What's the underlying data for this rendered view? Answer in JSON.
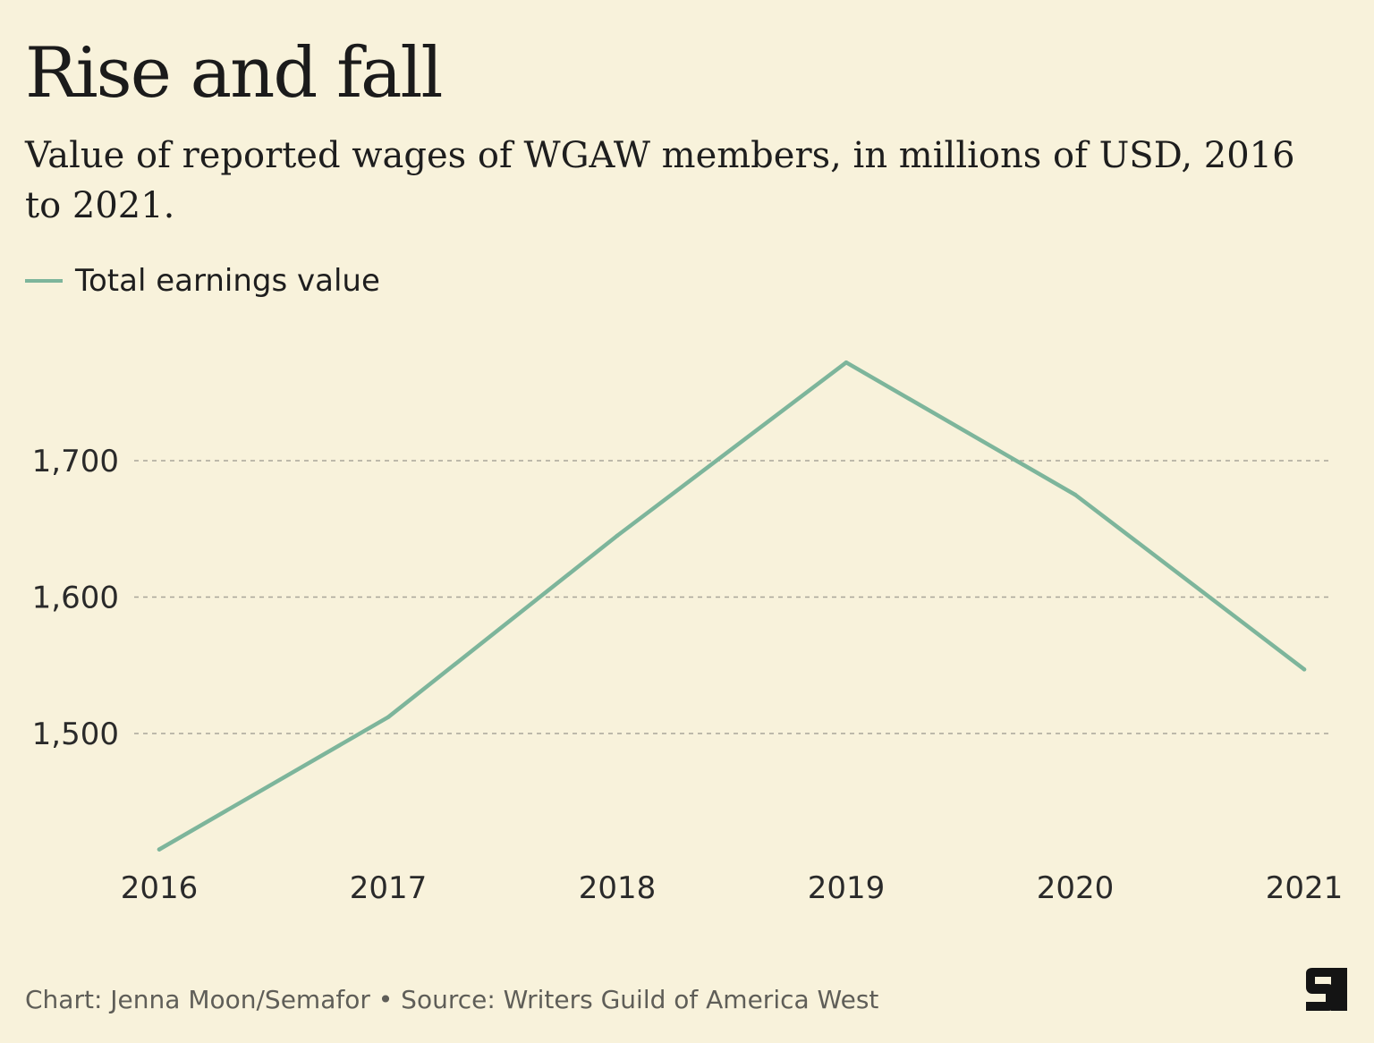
{
  "title": "Rise and fall",
  "subtitle": "Value of reported wages of WGAW members, in millions of USD, 2016 to 2021.",
  "footer": "Chart: Jenna Moon/Semafor • Source: Writers Guild of America West",
  "logo_icon": "semafor-logo-icon",
  "colors": {
    "background": "#f8f2db",
    "line": "#7db59b",
    "grid": "#a9a69a",
    "text": "#1e1e1e"
  },
  "chart_data": {
    "type": "line",
    "x": [
      "2016",
      "2017",
      "2018",
      "2019",
      "2020",
      "2021"
    ],
    "series": [
      {
        "name": "Total earnings value",
        "values": [
          1415,
          1512,
          1645,
          1772,
          1675,
          1547
        ]
      }
    ],
    "yticks": [
      {
        "value": 1500,
        "label": "1,500"
      },
      {
        "value": 1600,
        "label": "1,600"
      },
      {
        "value": 1700,
        "label": "1,700"
      }
    ],
    "ylim": [
      1415,
      1772
    ],
    "grid": "horizontal dashed",
    "legend": "top-left"
  }
}
